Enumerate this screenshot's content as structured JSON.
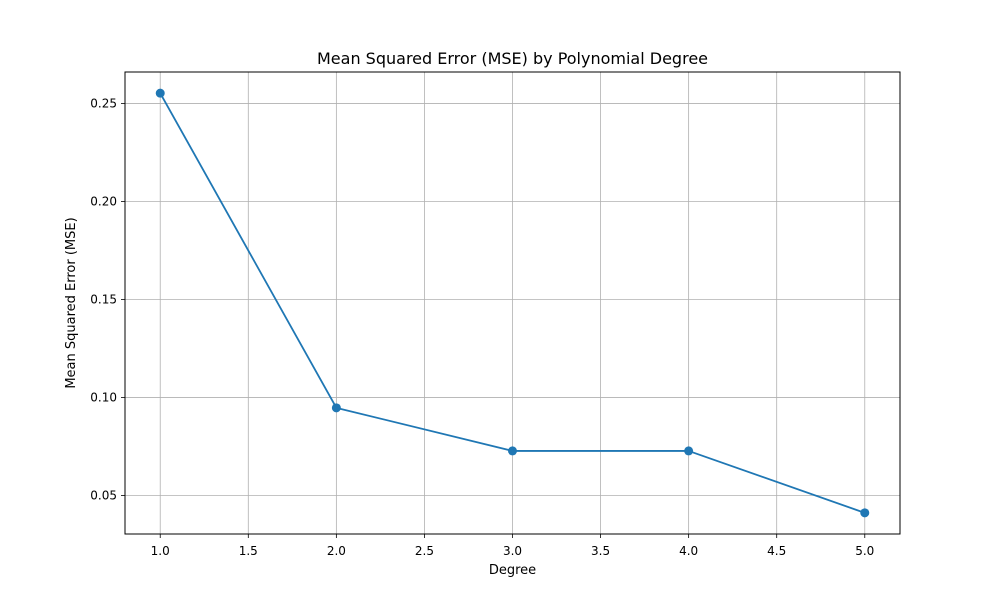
{
  "chart_data": {
    "type": "line",
    "title": "Mean Squared Error (MSE) by Polynomial Degree",
    "xlabel": "Degree",
    "ylabel": "Mean Squared Error (MSE)",
    "x": [
      1,
      2,
      3,
      4,
      5
    ],
    "series": [
      {
        "values": [
          0.2553,
          0.0947,
          0.0727,
          0.0727,
          0.0411
        ],
        "color": "#1f77b4",
        "marker": "circle"
      }
    ],
    "xlim": [
      0.8,
      5.2
    ],
    "ylim": [
      0.0303,
      0.2661
    ],
    "xticks": [
      1.0,
      1.5,
      2.0,
      2.5,
      3.0,
      3.5,
      4.0,
      4.5,
      5.0
    ],
    "xtick_labels": [
      "1.0",
      "1.5",
      "2.0",
      "2.5",
      "3.0",
      "3.5",
      "4.0",
      "4.5",
      "5.0"
    ],
    "yticks": [
      0.05,
      0.1,
      0.15,
      0.2,
      0.25
    ],
    "ytick_labels": [
      "0.05",
      "0.10",
      "0.15",
      "0.20",
      "0.25"
    ],
    "grid": true,
    "legend": false
  }
}
